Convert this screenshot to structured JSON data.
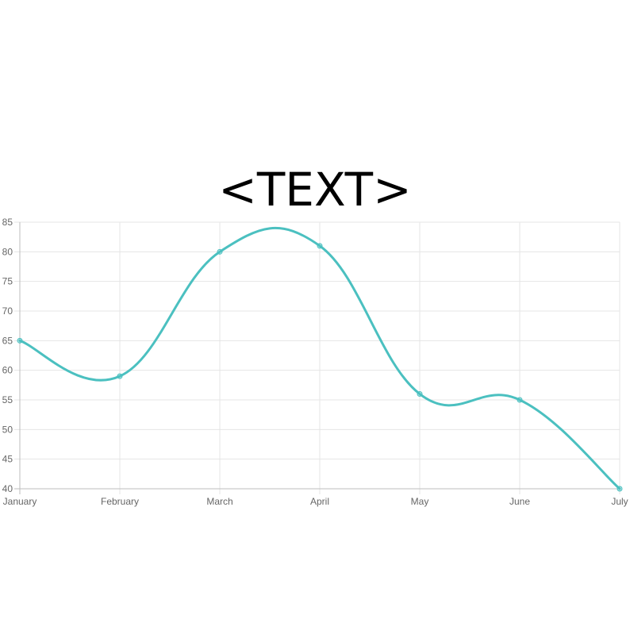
{
  "chart_data": {
    "type": "line",
    "title": "<TEXT>",
    "categories": [
      "January",
      "February",
      "March",
      "April",
      "May",
      "June",
      "July"
    ],
    "series": [
      {
        "values": [
          65,
          59,
          80,
          81,
          56,
          55,
          40
        ],
        "color": "#4bc0c0"
      }
    ],
    "ylim": [
      40,
      85
    ],
    "yticks": [
      40,
      45,
      50,
      55,
      60,
      65,
      70,
      75,
      80,
      85
    ],
    "grid": true,
    "legend": "none"
  }
}
